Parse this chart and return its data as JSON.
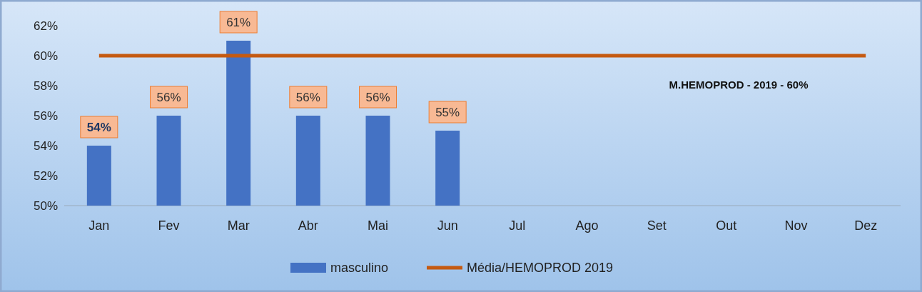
{
  "chart_data": {
    "type": "bar",
    "categories": [
      "Jan",
      "Fev",
      "Mar",
      "Abr",
      "Mai",
      "Jun",
      "Jul",
      "Ago",
      "Set",
      "Out",
      "Nov",
      "Dez"
    ],
    "series": [
      {
        "name": "masculino",
        "color": "#4472c4",
        "values": [
          54,
          56,
          61,
          56,
          56,
          55,
          null,
          null,
          null,
          null,
          null,
          null
        ],
        "value_labels": [
          "54%",
          "56%",
          "61%",
          "56%",
          "56%",
          "55%",
          null,
          null,
          null,
          null,
          null,
          null
        ]
      },
      {
        "name": "Média/HEMOPROD 2019",
        "type": "line",
        "color": "#c55a11",
        "values": [
          60,
          60,
          60,
          60,
          60,
          60,
          60,
          60,
          60,
          60,
          60,
          60
        ]
      }
    ],
    "ylim": [
      50,
      62
    ],
    "yticks": [
      {
        "value": 50,
        "label": "50%"
      },
      {
        "value": 52,
        "label": "52%"
      },
      {
        "value": 54,
        "label": "54%"
      },
      {
        "value": 56,
        "label": "56%"
      },
      {
        "value": 58,
        "label": "58%"
      },
      {
        "value": 60,
        "label": "60%"
      },
      {
        "value": 62,
        "label": "62%"
      }
    ],
    "annotations": [
      "M.HEMOPROD - 2019 - 60%"
    ],
    "legend": "bottom"
  }
}
